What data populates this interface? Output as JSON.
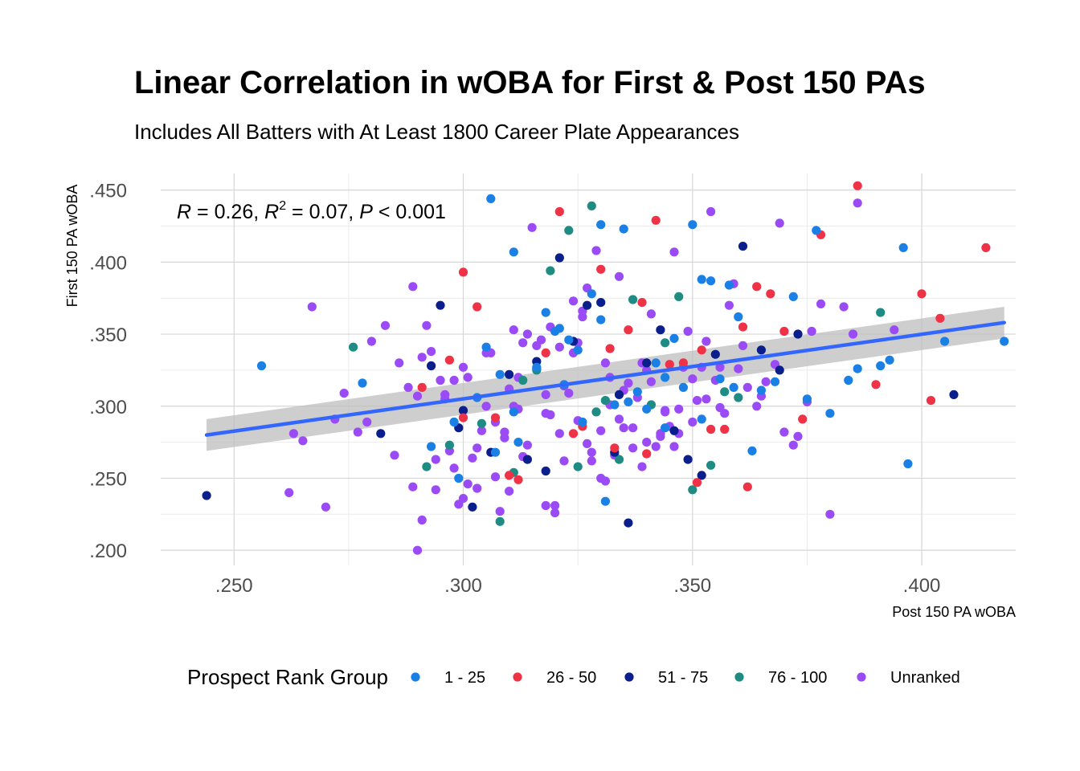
{
  "chart_data": {
    "type": "scatter",
    "title": "Linear Correlation in wOBA for First & Post 150 PAs",
    "subtitle": "Includes All Batters with At Least 1800 Career Plate Appearances",
    "xlabel": "Post 150 PA wOBA",
    "ylabel": "First 150 PA wOBA",
    "xlim": [
      0.234,
      0.4205
    ],
    "ylim": [
      0.1895,
      0.4615
    ],
    "x_ticks": [
      0.25,
      0.3,
      0.35,
      0.4
    ],
    "x_tick_labels": [
      ".250",
      ".300",
      ".350",
      ".400"
    ],
    "y_ticks": [
      0.2,
      0.25,
      0.3,
      0.35,
      0.4,
      0.45
    ],
    "y_tick_labels": [
      ".200",
      ".250",
      ".300",
      ".350",
      ".400",
      ".450"
    ],
    "grid": true,
    "legend": {
      "title": "Prospect Rank Group",
      "position": "bottom",
      "entries": [
        {
          "label": "1 - 25",
          "color": "#1a80e6"
        },
        {
          "label": "26 - 50",
          "color": "#f03246"
        },
        {
          "label": "51 - 75",
          "color": "#0a1e8c"
        },
        {
          "label": "76 - 100",
          "color": "#1e8c82"
        },
        {
          "label": "Unranked",
          "color": "#9b4bf5"
        }
      ]
    },
    "annotation": {
      "R": "0.26",
      "R2": "0.07",
      "P": "0.001"
    },
    "regression": {
      "x": [
        0.244,
        0.418
      ],
      "y": [
        0.28,
        0.358
      ],
      "ci_lower": [
        0.269,
        0.347
      ],
      "ci_upper": [
        0.291,
        0.369
      ],
      "line_color": "#3366ff",
      "band_color": "#bdbdbd"
    },
    "series": [
      {
        "name": "1 - 25",
        "x": [
          0.256,
          0.278,
          0.293,
          0.298,
          0.303,
          0.305,
          0.306,
          0.308,
          0.311,
          0.312,
          0.316,
          0.318,
          0.32,
          0.322,
          0.325,
          0.328,
          0.33,
          0.331,
          0.333,
          0.335,
          0.338,
          0.34,
          0.342,
          0.344,
          0.346,
          0.348,
          0.35,
          0.352,
          0.354,
          0.356,
          0.358,
          0.36,
          0.363,
          0.365,
          0.368,
          0.372,
          0.375,
          0.377,
          0.38,
          0.384,
          0.386,
          0.391,
          0.393,
          0.396,
          0.397,
          0.405,
          0.418,
          0.33,
          0.311,
          0.323,
          0.336,
          0.352,
          0.326,
          0.344,
          0.359,
          0.299,
          0.307,
          0.321
        ],
        "y": [
          0.328,
          0.316,
          0.272,
          0.289,
          0.306,
          0.341,
          0.444,
          0.322,
          0.407,
          0.275,
          0.327,
          0.365,
          0.352,
          0.315,
          0.339,
          0.378,
          0.426,
          0.234,
          0.301,
          0.423,
          0.31,
          0.298,
          0.33,
          0.285,
          0.347,
          0.313,
          0.426,
          0.388,
          0.387,
          0.319,
          0.384,
          0.362,
          0.269,
          0.311,
          0.317,
          0.376,
          0.305,
          0.422,
          0.295,
          0.318,
          0.326,
          0.328,
          0.332,
          0.41,
          0.26,
          0.345,
          0.345,
          0.36,
          0.296,
          0.346,
          0.303,
          0.291,
          0.289,
          0.32,
          0.313,
          0.25,
          0.268,
          0.354
        ]
      },
      {
        "name": "26 - 50",
        "x": [
          0.291,
          0.297,
          0.3,
          0.303,
          0.307,
          0.312,
          0.318,
          0.321,
          0.326,
          0.33,
          0.333,
          0.336,
          0.339,
          0.342,
          0.345,
          0.348,
          0.351,
          0.354,
          0.357,
          0.361,
          0.364,
          0.367,
          0.37,
          0.374,
          0.378,
          0.386,
          0.39,
          0.4,
          0.402,
          0.404,
          0.414,
          0.31,
          0.324,
          0.34,
          0.352,
          0.3,
          0.332,
          0.362
        ],
        "y": [
          0.313,
          0.332,
          0.393,
          0.369,
          0.292,
          0.249,
          0.337,
          0.435,
          0.286,
          0.395,
          0.271,
          0.353,
          0.372,
          0.429,
          0.329,
          0.33,
          0.247,
          0.284,
          0.284,
          0.355,
          0.383,
          0.378,
          0.352,
          0.291,
          0.419,
          0.453,
          0.315,
          0.378,
          0.304,
          0.361,
          0.41,
          0.252,
          0.281,
          0.267,
          0.339,
          0.292,
          0.34,
          0.244
        ]
      },
      {
        "name": "51 - 75",
        "x": [
          0.244,
          0.282,
          0.293,
          0.295,
          0.299,
          0.302,
          0.306,
          0.31,
          0.314,
          0.318,
          0.321,
          0.324,
          0.327,
          0.33,
          0.333,
          0.336,
          0.34,
          0.343,
          0.346,
          0.349,
          0.352,
          0.355,
          0.361,
          0.365,
          0.369,
          0.373,
          0.407,
          0.3,
          0.316,
          0.334
        ],
        "y": [
          0.238,
          0.281,
          0.328,
          0.37,
          0.285,
          0.23,
          0.268,
          0.322,
          0.263,
          0.255,
          0.403,
          0.345,
          0.37,
          0.372,
          0.268,
          0.219,
          0.33,
          0.353,
          0.283,
          0.263,
          0.252,
          0.336,
          0.411,
          0.339,
          0.325,
          0.35,
          0.308,
          0.297,
          0.331,
          0.308
        ]
      },
      {
        "name": "76 - 100",
        "x": [
          0.276,
          0.292,
          0.297,
          0.304,
          0.308,
          0.311,
          0.316,
          0.319,
          0.323,
          0.325,
          0.328,
          0.331,
          0.334,
          0.337,
          0.341,
          0.344,
          0.347,
          0.35,
          0.354,
          0.357,
          0.36,
          0.391,
          0.329,
          0.313
        ],
        "y": [
          0.341,
          0.258,
          0.273,
          0.288,
          0.22,
          0.254,
          0.325,
          0.394,
          0.422,
          0.258,
          0.439,
          0.304,
          0.263,
          0.374,
          0.301,
          0.344,
          0.376,
          0.242,
          0.259,
          0.31,
          0.306,
          0.365,
          0.296,
          0.318
        ]
      },
      {
        "name": "Unranked",
        "x": [
          0.262,
          0.263,
          0.265,
          0.267,
          0.27,
          0.272,
          0.274,
          0.277,
          0.279,
          0.28,
          0.283,
          0.285,
          0.286,
          0.288,
          0.289,
          0.29,
          0.291,
          0.292,
          0.293,
          0.294,
          0.295,
          0.296,
          0.297,
          0.298,
          0.299,
          0.3,
          0.301,
          0.302,
          0.303,
          0.304,
          0.305,
          0.306,
          0.307,
          0.308,
          0.309,
          0.31,
          0.311,
          0.312,
          0.313,
          0.314,
          0.315,
          0.316,
          0.317,
          0.318,
          0.319,
          0.32,
          0.321,
          0.322,
          0.323,
          0.324,
          0.325,
          0.326,
          0.327,
          0.328,
          0.329,
          0.33,
          0.331,
          0.332,
          0.333,
          0.334,
          0.335,
          0.336,
          0.337,
          0.338,
          0.339,
          0.34,
          0.341,
          0.342,
          0.343,
          0.344,
          0.345,
          0.346,
          0.347,
          0.348,
          0.349,
          0.35,
          0.351,
          0.352,
          0.353,
          0.354,
          0.355,
          0.356,
          0.357,
          0.358,
          0.359,
          0.36,
          0.361,
          0.362,
          0.364,
          0.365,
          0.366,
          0.368,
          0.369,
          0.37,
          0.372,
          0.373,
          0.375,
          0.376,
          0.378,
          0.38,
          0.383,
          0.385,
          0.386,
          0.394,
          0.289,
          0.294,
          0.298,
          0.301,
          0.305,
          0.309,
          0.313,
          0.316,
          0.319,
          0.322,
          0.325,
          0.327,
          0.331,
          0.334,
          0.337,
          0.341,
          0.344,
          0.347,
          0.35,
          0.353,
          0.356,
          0.291,
          0.296,
          0.303,
          0.307,
          0.311,
          0.314,
          0.318,
          0.321,
          0.324,
          0.328,
          0.332,
          0.335,
          0.339,
          0.343,
          0.346,
          0.29,
          0.3,
          0.31,
          0.32,
          0.33,
          0.34,
          0.326,
          0.318,
          0.312
        ],
        "y": [
          0.24,
          0.281,
          0.276,
          0.369,
          0.23,
          0.291,
          0.309,
          0.282,
          0.289,
          0.345,
          0.356,
          0.266,
          0.33,
          0.313,
          0.244,
          0.307,
          0.221,
          0.356,
          0.338,
          0.242,
          0.318,
          0.305,
          0.269,
          0.257,
          0.232,
          0.327,
          0.32,
          0.264,
          0.243,
          0.283,
          0.3,
          0.337,
          0.251,
          0.227,
          0.282,
          0.312,
          0.353,
          0.298,
          0.344,
          0.273,
          0.424,
          0.326,
          0.346,
          0.231,
          0.294,
          0.226,
          0.281,
          0.314,
          0.309,
          0.373,
          0.29,
          0.366,
          0.382,
          0.268,
          0.408,
          0.283,
          0.248,
          0.301,
          0.266,
          0.39,
          0.311,
          0.316,
          0.271,
          0.306,
          0.258,
          0.325,
          0.317,
          0.272,
          0.281,
          0.297,
          0.286,
          0.407,
          0.298,
          0.327,
          0.352,
          0.289,
          0.304,
          0.327,
          0.345,
          0.435,
          0.318,
          0.327,
          0.295,
          0.37,
          0.385,
          0.326,
          0.342,
          0.313,
          0.3,
          0.307,
          0.317,
          0.329,
          0.427,
          0.282,
          0.273,
          0.279,
          0.303,
          0.352,
          0.371,
          0.225,
          0.369,
          0.35,
          0.441,
          0.353,
          0.383,
          0.263,
          0.318,
          0.246,
          0.337,
          0.278,
          0.265,
          0.342,
          0.355,
          0.262,
          0.344,
          0.274,
          0.33,
          0.291,
          0.285,
          0.364,
          0.296,
          0.281,
          0.319,
          0.305,
          0.299,
          0.334,
          0.308,
          0.271,
          0.289,
          0.3,
          0.35,
          0.295,
          0.341,
          0.337,
          0.262,
          0.32,
          0.285,
          0.33,
          0.279,
          0.272,
          0.2,
          0.236,
          0.241,
          0.231,
          0.25,
          0.275,
          0.362,
          0.308,
          0.32
        ]
      }
    ]
  }
}
